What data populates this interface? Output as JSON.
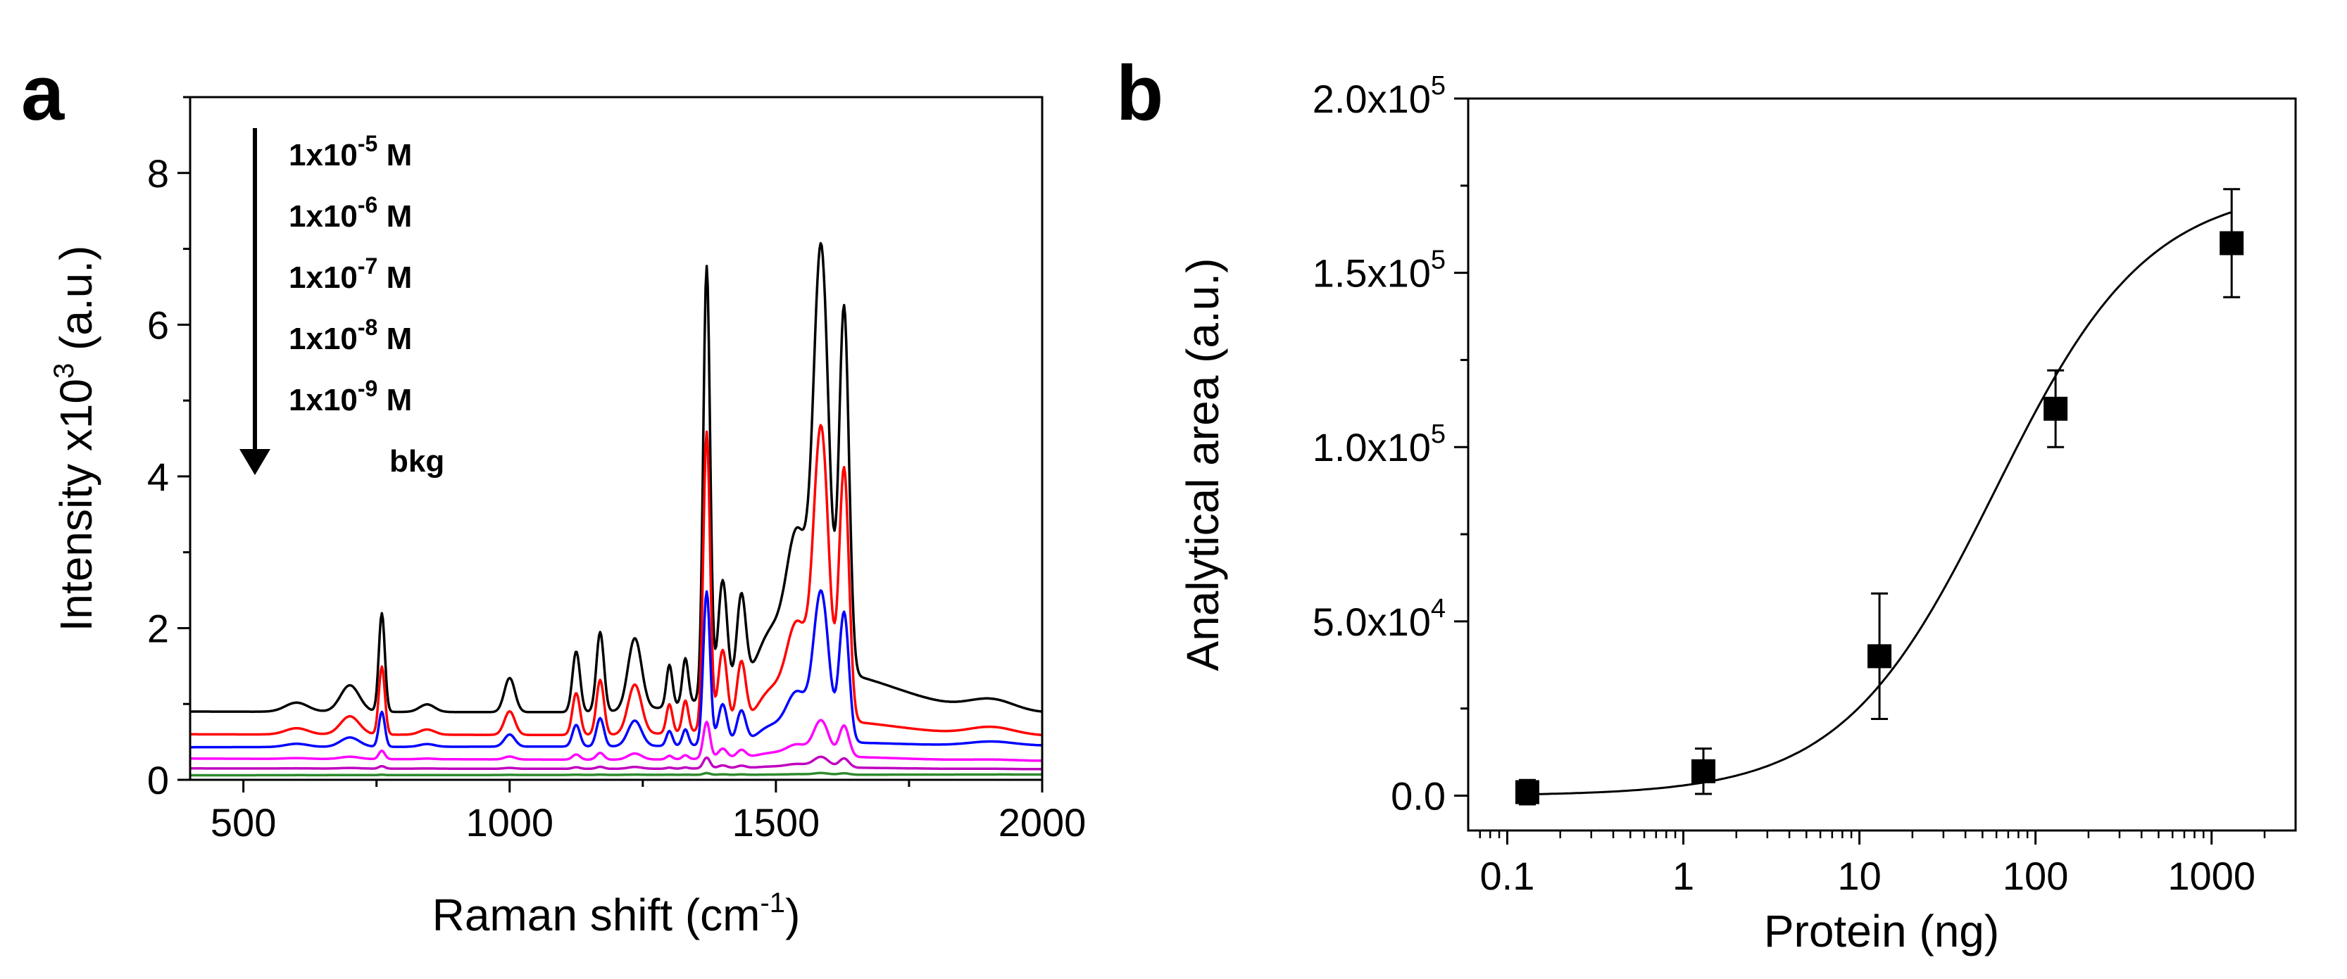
{
  "figure": {
    "panel_a_label": "a",
    "panel_b_label": "b"
  },
  "chart_data": [
    {
      "type": "line",
      "panel": "a",
      "title": "",
      "xlabel": {
        "text": "Raman shift (cm",
        "sup": "-1",
        "tail": ")"
      },
      "ylabel": {
        "text": "Intensity x10",
        "sup": "3",
        "tail": " (a.u.)"
      },
      "xlim": [
        400,
        2000
      ],
      "ylim": [
        0,
        9
      ],
      "xticks": [
        500,
        1000,
        1500,
        2000
      ],
      "xtick_labels": [
        "500",
        "1000",
        "1500",
        "2000"
      ],
      "yticks": [
        0,
        2,
        4,
        6,
        8
      ],
      "ytick_labels": [
        "0",
        "2",
        "4",
        "6",
        "8"
      ],
      "legend_arrow": "concentration decreasing downward",
      "legend": [
        {
          "label_main": "1x10",
          "label_sup": "-5",
          "label_tail": " M"
        },
        {
          "label_main": "1x10",
          "label_sup": "-6",
          "label_tail": " M"
        },
        {
          "label_main": "1x10",
          "label_sup": "-7",
          "label_tail": " M"
        },
        {
          "label_main": "1x10",
          "label_sup": "-8",
          "label_tail": " M"
        },
        {
          "label_main": "1x10",
          "label_sup": "-9",
          "label_tail": " M"
        },
        {
          "label_main": "bkg",
          "label_sup": "",
          "label_tail": ""
        }
      ],
      "peaks": [
        {
          "center": 600,
          "width": 30,
          "height": 0.12
        },
        {
          "center": 700,
          "width": 25,
          "height": 0.35
        },
        {
          "center": 760,
          "width": 8,
          "height": 1.3
        },
        {
          "center": 845,
          "width": 20,
          "height": 0.1
        },
        {
          "center": 1000,
          "width": 14,
          "height": 0.45
        },
        {
          "center": 1125,
          "width": 10,
          "height": 0.8
        },
        {
          "center": 1170,
          "width": 10,
          "height": 1.05
        },
        {
          "center": 1235,
          "width": 18,
          "height": 0.95
        },
        {
          "center": 1300,
          "width": 8,
          "height": 0.55
        },
        {
          "center": 1330,
          "width": 8,
          "height": 0.6
        },
        {
          "center": 1370,
          "width": 9,
          "height": 5.7
        },
        {
          "center": 1400,
          "width": 12,
          "height": 1.5
        },
        {
          "center": 1435,
          "width": 12,
          "height": 1.2
        },
        {
          "center": 1490,
          "width": 35,
          "height": 0.6
        },
        {
          "center": 1540,
          "width": 28,
          "height": 1.8
        },
        {
          "center": 1585,
          "width": 20,
          "height": 5.5
        },
        {
          "center": 1628,
          "width": 13,
          "height": 4.8
        },
        {
          "center": 1905,
          "width": 60,
          "height": 0.15
        }
      ],
      "series": [
        {
          "name": "1x10^-5 M",
          "color": "#000000",
          "baseline_start": 0.9,
          "baseline_end": 0.88,
          "bump": 0.55,
          "scale": 1.0
        },
        {
          "name": "1x10^-6 M",
          "color": "#ff0000",
          "baseline_start": 0.6,
          "baseline_end": 0.58,
          "bump": 0.2,
          "scale": 0.69
        },
        {
          "name": "1x10^-7 M",
          "color": "#0000ff",
          "baseline_start": 0.43,
          "baseline_end": 0.45,
          "bump": 0.05,
          "scale": 0.355
        },
        {
          "name": "1x10^-8 M",
          "color": "#ff00ff",
          "baseline_start": 0.28,
          "baseline_end": 0.25,
          "bump": 0.05,
          "scale": 0.085
        },
        {
          "name": "1x10^-9 M",
          "color": "#c000c0",
          "baseline_start": 0.15,
          "baseline_end": 0.14,
          "bump": 0.02,
          "scale": 0.025
        },
        {
          "name": "bkg",
          "color": "#2e8b2e",
          "baseline_start": 0.06,
          "baseline_end": 0.07,
          "bump": 0.0,
          "scale": 0.004
        }
      ]
    },
    {
      "type": "scatter",
      "panel": "b",
      "title": "",
      "xscale": "log",
      "xlabel": "Protein (ng)",
      "ylabel": "Analytical area (a.u.)",
      "xlim": [
        0.06,
        3000
      ],
      "ylim": [
        -10000,
        200000
      ],
      "xticks": [
        0.1,
        1,
        10,
        100,
        1000
      ],
      "xtick_labels": [
        "0.1",
        "1",
        "10",
        "100",
        "1000"
      ],
      "yticks": [
        0,
        50000,
        100000,
        150000,
        200000
      ],
      "ytick_labels": [
        {
          "main": "0.0",
          "sup": ""
        },
        {
          "main": "5.0x10",
          "sup": "4"
        },
        {
          "main": "1.0x10",
          "sup": "5"
        },
        {
          "main": "1.5x10",
          "sup": "5"
        },
        {
          "main": "2.0x10",
          "sup": "5"
        }
      ],
      "points": [
        {
          "x": 0.13,
          "y": 1000,
          "err": 3500
        },
        {
          "x": 1.3,
          "y": 7000,
          "err": 6500
        },
        {
          "x": 13,
          "y": 40000,
          "err": 18000
        },
        {
          "x": 130,
          "y": 111000,
          "err": 11000
        },
        {
          "x": 1300,
          "y": 158500,
          "err": 15500
        }
      ],
      "fit": {
        "model": "sigmoid",
        "bottom": 0,
        "top": 175000,
        "logEC50": 1.77,
        "hill": 1.0
      }
    }
  ]
}
